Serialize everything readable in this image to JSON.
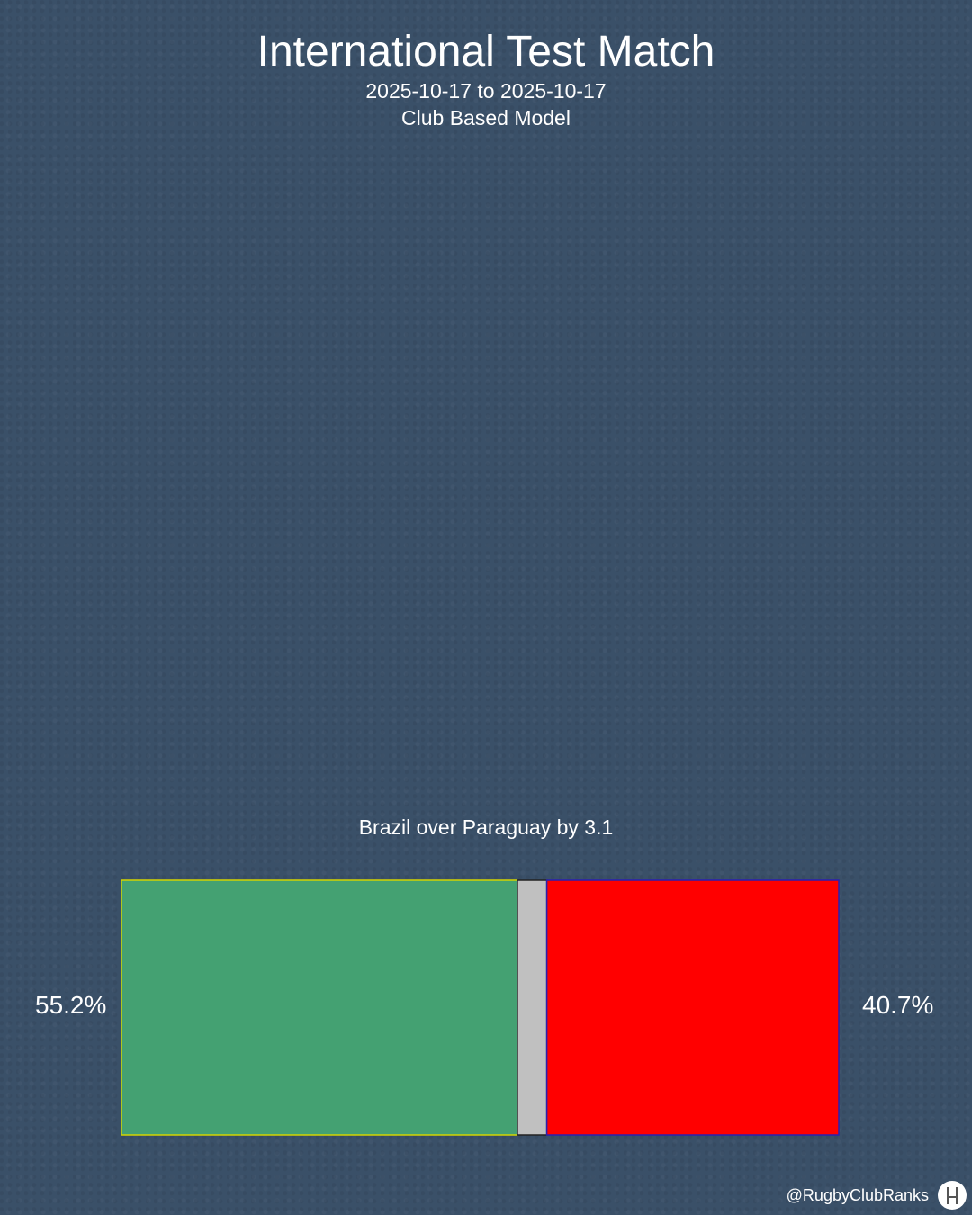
{
  "header": {
    "title": "International Test Match",
    "date_range": "2025-10-17 to 2025-10-17",
    "model": "Club Based Model"
  },
  "summary": "Brazil over Paraguay by 3.1",
  "footer": {
    "handle": "@RugbyClubRanks",
    "logo_icon": "rugby-posts-icon"
  },
  "chart_data": {
    "type": "bar",
    "orientation": "horizontal-stacked",
    "categories": [
      "home win",
      "draw",
      "away win"
    ],
    "values": [
      55.2,
      4.1,
      40.7
    ],
    "labels": [
      "55.2%",
      "",
      "40.7%"
    ],
    "colors": {
      "home": "#44a172",
      "draw": "#c0c0c0",
      "away": "#ff0000",
      "home_border": "#d4d400",
      "away_border": "#2a1fb0",
      "draw_border": "#222222"
    }
  }
}
